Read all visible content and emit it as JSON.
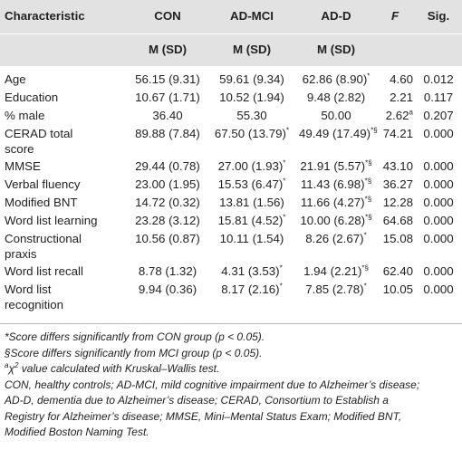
{
  "header": {
    "characteristic": "Characteristic",
    "con": "CON",
    "admci": "AD-MCI",
    "add": "AD-D",
    "f": "F",
    "sig": "Sig.",
    "msd": "M (SD)"
  },
  "rows": [
    {
      "label": "Age",
      "con": "56.15 (9.31)",
      "admci": "59.61 (9.34)",
      "add": "62.86 (8.90)",
      "add_mark": "*",
      "f": "4.60",
      "f_mark": "",
      "sig": "0.012"
    },
    {
      "label": "Education",
      "con": "10.67 (1.71)",
      "admci": "10.52 (1.94)",
      "add": "9.48 (2.82)",
      "add_mark": "",
      "f": "2.21",
      "f_mark": "",
      "sig": "0.117"
    },
    {
      "label": "% male",
      "con": "36.40",
      "admci": "55.30",
      "add": "50.00",
      "add_mark": "",
      "f": "2.62",
      "f_mark": "a",
      "sig": "0.207"
    },
    {
      "label": "CERAD total",
      "label2": "score",
      "con": "89.88 (7.84)",
      "admci": "67.50 (13.79)",
      "admci_mark": "*",
      "add": "49.49 (17.49)",
      "add_mark": "*§",
      "f": "74.21",
      "f_mark": "",
      "sig": "0.000"
    },
    {
      "label": "MMSE",
      "con": "29.44 (0.78)",
      "admci": "27.00 (1.93)",
      "admci_mark": "*",
      "add": "21.91 (5.57)",
      "add_mark": "*§",
      "f": "43.10",
      "f_mark": "",
      "sig": "0.000"
    },
    {
      "label": "Verbal fluency",
      "con": "23.00 (1.95)",
      "admci": "15.53 (6.47)",
      "admci_mark": "*",
      "add": "11.43 (6.98)",
      "add_mark": "*§",
      "f": "36.27",
      "f_mark": "",
      "sig": "0.000"
    },
    {
      "label": "Modified BNT",
      "con": "14.72 (0.32)",
      "admci": "13.81 (1.56)",
      "add": "11.66 (4.27)",
      "add_mark": "*§",
      "f": "12.28",
      "f_mark": "",
      "sig": "0.000"
    },
    {
      "label": "Word list learning",
      "con": "23.28 (3.12)",
      "admci": "15.81 (4.52)",
      "admci_mark": "*",
      "add": "10.00 (6.28)",
      "add_mark": "*§",
      "f": "64.68",
      "f_mark": "",
      "sig": "0.000"
    },
    {
      "label": "Constructional",
      "label2": "praxis",
      "con": "10.56 (0.87)",
      "admci": "10.11 (1.54)",
      "add": "8.26 (2.67)",
      "add_mark": "*",
      "f": "15.08",
      "f_mark": "",
      "sig": "0.000"
    },
    {
      "label": "Word list recall",
      "con": "8.78 (1.32)",
      "admci": "4.31 (3.53)",
      "admci_mark": "*",
      "add": "1.94 (2.21)",
      "add_mark": "*§",
      "f": "62.40",
      "f_mark": "",
      "sig": "0.000"
    },
    {
      "label": "Word list",
      "label2": "recognition",
      "con": "9.94 (0.36)",
      "admci": "8.17 (2.16)",
      "admci_mark": "*",
      "add": "7.85 (2.78)",
      "add_mark": "*",
      "f": "10.05",
      "f_mark": "",
      "sig": "0.000"
    }
  ],
  "notes": {
    "n1": "*Score differs significantly from CON group (p < 0.05).",
    "n2": "§Score differs significantly from MCI group (p < 0.05).",
    "n3_sup": "a",
    "n3_chi": "χ",
    "n3_chi_sup": "2",
    "n3_rest": " value calculated with Kruskal–Wallis test.",
    "n4": "CON, healthy controls; AD-MCI, mild cognitive impairment due to Alzheimer’s disease;",
    "n5": "AD-D, dementia due to Alzheimer’s disease; CERAD, Consortium to Establish a",
    "n6": "Registry for Alzheimer’s disease; MMSE, Mini–Mental Status Exam; Modified BNT,",
    "n7": "Modified Boston Naming Test."
  }
}
